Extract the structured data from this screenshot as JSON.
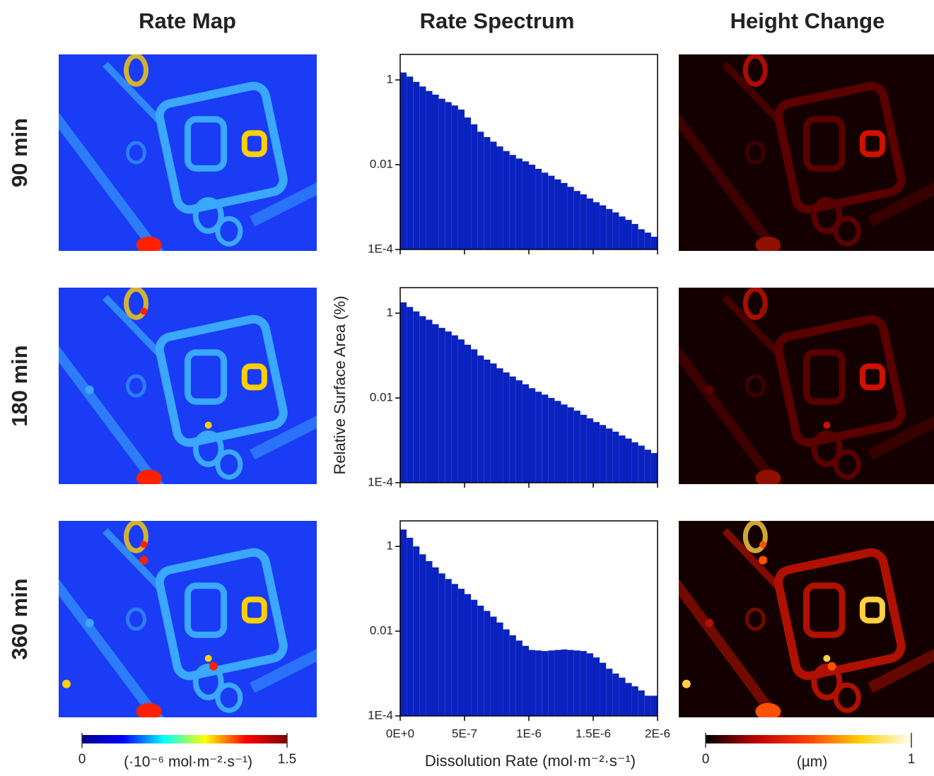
{
  "figure": {
    "column_titles": [
      "Rate Map",
      "Rate Spectrum",
      "Height Change"
    ],
    "row_labels": [
      "90 min",
      "180 min",
      "360 min"
    ]
  },
  "chart_data": [
    {
      "type": "histogram",
      "color": "#0a22c0",
      "log_y": true,
      "bins": [
        0,
        5e-08,
        1e-07,
        1.5e-07,
        2e-07,
        2.5e-07,
        3e-07,
        3.5e-07,
        4e-07,
        4.5e-07,
        5e-07,
        5.5e-07,
        6e-07,
        6.5e-07,
        7e-07,
        7.5e-07,
        8e-07,
        8.5e-07,
        9e-07,
        9.5e-07,
        1e-06,
        1.05e-06,
        1.1e-06,
        1.15e-06,
        1.2e-06,
        1.25e-06,
        1.3e-06,
        1.35e-06,
        1.4e-06,
        1.45e-06,
        1.5e-06,
        1.55e-06,
        1.6e-06,
        1.65e-06,
        1.7e-06,
        1.75e-06,
        1.8e-06,
        1.85e-06,
        1.9e-06,
        1.95e-06,
        2e-06
      ],
      "values": [
        1.5,
        1.2,
        0.9,
        0.7,
        0.55,
        0.45,
        0.36,
        0.3,
        0.25,
        0.2,
        0.13,
        0.09,
        0.06,
        0.045,
        0.035,
        0.027,
        0.021,
        0.017,
        0.014,
        0.012,
        0.01,
        0.008,
        0.0065,
        0.0055,
        0.0045,
        0.0037,
        0.003,
        0.0024,
        0.002,
        0.0016,
        0.0013,
        0.0011,
        0.0009,
        0.00075,
        0.0006,
        0.0005,
        0.0004,
        0.0003,
        0.00025,
        0.0002
      ],
      "xlim": [
        0,
        2e-06
      ],
      "xticks": [
        0,
        5e-07,
        1e-06,
        1.5e-06,
        2e-06
      ],
      "ylim": [
        0.0001,
        4
      ],
      "yticks": [
        {
          "value": 0.0001,
          "label": "1E-4"
        },
        0.01,
        1
      ]
    },
    {
      "type": "histogram",
      "color": "#0a22c0",
      "log_y": true,
      "ylabel": "Relative Surface Area (%)",
      "bins": [
        0,
        5e-08,
        1e-07,
        1.5e-07,
        2e-07,
        2.5e-07,
        3e-07,
        3.5e-07,
        4e-07,
        4.5e-07,
        5e-07,
        5.5e-07,
        6e-07,
        6.5e-07,
        7e-07,
        7.5e-07,
        8e-07,
        8.5e-07,
        9e-07,
        9.5e-07,
        1e-06,
        1.05e-06,
        1.1e-06,
        1.15e-06,
        1.2e-06,
        1.25e-06,
        1.3e-06,
        1.35e-06,
        1.4e-06,
        1.45e-06,
        1.5e-06,
        1.55e-06,
        1.6e-06,
        1.65e-06,
        1.7e-06,
        1.75e-06,
        1.8e-06,
        1.85e-06,
        1.9e-06,
        1.95e-06,
        2e-06
      ],
      "values": [
        1.8,
        1.4,
        1.1,
        0.85,
        0.7,
        0.55,
        0.45,
        0.37,
        0.3,
        0.24,
        0.18,
        0.14,
        0.1,
        0.08,
        0.065,
        0.05,
        0.04,
        0.032,
        0.026,
        0.021,
        0.017,
        0.014,
        0.012,
        0.01,
        0.0085,
        0.007,
        0.006,
        0.005,
        0.004,
        0.0033,
        0.0027,
        0.0023,
        0.0019,
        0.0016,
        0.0013,
        0.0011,
        0.0009,
        0.00075,
        0.0006,
        0.0005
      ],
      "xlim": [
        0,
        2e-06
      ],
      "xticks": [
        0,
        5e-07,
        1e-06,
        1.5e-06,
        2e-06
      ],
      "ylim": [
        0.0001,
        4
      ],
      "yticks": [
        {
          "value": 0.0001,
          "label": "1E-4"
        },
        0.01,
        1
      ]
    },
    {
      "type": "histogram",
      "color": "#0a22c0",
      "log_y": true,
      "xlabel": "Dissolution Rate (mol·m⁻²·s⁻¹)",
      "bins": [
        0,
        5e-08,
        1e-07,
        1.5e-07,
        2e-07,
        2.5e-07,
        3e-07,
        3.5e-07,
        4e-07,
        4.5e-07,
        5e-07,
        5.5e-07,
        6e-07,
        6.5e-07,
        7e-07,
        7.5e-07,
        8e-07,
        8.5e-07,
        9e-07,
        9.5e-07,
        1e-06,
        1.05e-06,
        1.1e-06,
        1.15e-06,
        1.2e-06,
        1.25e-06,
        1.3e-06,
        1.35e-06,
        1.4e-06,
        1.45e-06,
        1.5e-06,
        1.55e-06,
        1.6e-06,
        1.65e-06,
        1.7e-06,
        1.75e-06,
        1.8e-06,
        1.85e-06,
        1.9e-06,
        1.95e-06,
        2e-06
      ],
      "values": [
        2.5,
        1.6,
        1.0,
        0.65,
        0.45,
        0.32,
        0.23,
        0.17,
        0.13,
        0.1,
        0.075,
        0.055,
        0.04,
        0.03,
        0.022,
        0.016,
        0.011,
        0.008,
        0.006,
        0.0045,
        0.0036,
        0.0035,
        0.0034,
        0.0035,
        0.0036,
        0.0037,
        0.0036,
        0.0035,
        0.0034,
        0.003,
        0.0024,
        0.0018,
        0.0013,
        0.001,
        0.0008,
        0.0006,
        0.0005,
        0.0004,
        0.0003,
        0.0003
      ],
      "xlim": [
        0,
        2e-06
      ],
      "xticks": [
        {
          "value": 0,
          "label": "0E+0"
        },
        {
          "value": 5e-07,
          "label": "5E-7"
        },
        {
          "value": 1e-06,
          "label": "1E-6"
        },
        {
          "value": 1.5e-06,
          "label": "1.5E-6"
        },
        {
          "value": 2e-06,
          "label": "2E-6"
        }
      ],
      "ylim": [
        0.0001,
        4
      ],
      "yticks": [
        {
          "value": 0.0001,
          "label": "1E-4"
        },
        0.01,
        1
      ]
    },
    {
      "type": "colorbar",
      "label": "(·10⁻⁶ mol·m⁻²·s⁻¹)",
      "colors": [
        "#00008f",
        "#0000ff",
        "#00ffff",
        "#ffff00",
        "#ff0000",
        "#800000"
      ],
      "xlim": [
        0,
        1.5
      ],
      "xticks": [
        0,
        1.5
      ]
    },
    {
      "type": "colorbar",
      "label": "(µm)",
      "colors": [
        "#000000",
        "#c00000",
        "#ff4000",
        "#ffd000",
        "#fffff0"
      ],
      "xlim": [
        0,
        1
      ],
      "xticks": [
        0,
        1
      ]
    }
  ]
}
